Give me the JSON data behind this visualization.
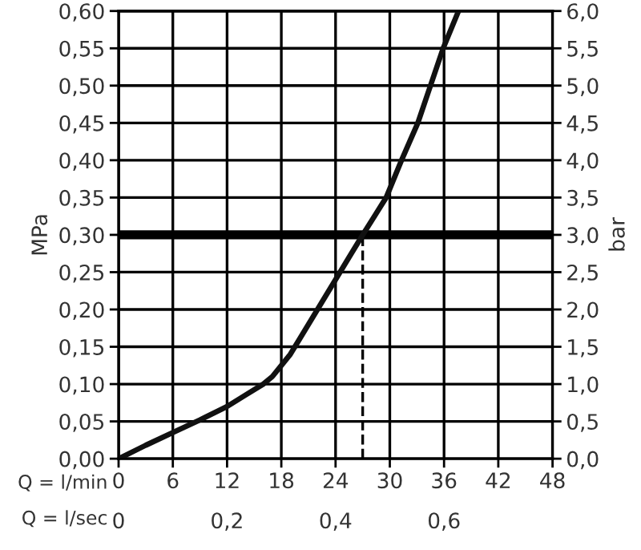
{
  "chart_data": {
    "type": "line",
    "xlabel": "Q = l/min",
    "x2label": "Q = l/sec",
    "ylabel": "MPa",
    "y2label": "bar",
    "x": [
      0,
      3,
      6,
      9,
      12,
      14,
      16,
      17,
      18,
      19,
      20,
      22,
      24,
      25.5,
      27,
      28.3,
      29.6,
      31.3,
      33.1,
      34.5,
      35.9,
      37.6
    ],
    "series": [
      {
        "color": "#111111",
        "values": [
          0,
          0.018,
          0.035,
          0.052,
          0.07,
          0.085,
          0.1,
          0.11,
          0.125,
          0.14,
          0.16,
          0.2,
          0.24,
          0.27,
          0.3,
          0.325,
          0.35,
          0.4,
          0.45,
          0.5,
          0.55,
          0.6
        ]
      }
    ],
    "xlim": [
      0,
      48
    ],
    "xticks": [
      0,
      6,
      12,
      18,
      24,
      30,
      36,
      42,
      48
    ],
    "ylim": [
      0,
      0.6
    ],
    "yticks": [
      {
        "value": 0,
        "label": "0,00"
      },
      {
        "value": 0.05,
        "label": "0,05"
      },
      {
        "value": 0.1,
        "label": "0,10"
      },
      {
        "value": 0.15,
        "label": "0,15"
      },
      {
        "value": 0.2,
        "label": "0,20"
      },
      {
        "value": 0.25,
        "label": "0,25"
      },
      {
        "value": 0.3,
        "label": "0,30"
      },
      {
        "value": 0.35,
        "label": "0,35"
      },
      {
        "value": 0.4,
        "label": "0,40"
      },
      {
        "value": 0.45,
        "label": "0,45"
      },
      {
        "value": 0.5,
        "label": "0,50"
      },
      {
        "value": 0.55,
        "label": "0,55"
      },
      {
        "value": 0.6,
        "label": "0,60"
      }
    ],
    "y2lim": [
      0,
      6
    ],
    "y2ticks": [
      {
        "value": 0,
        "label": "0,0"
      },
      {
        "value": 0.5,
        "label": "0,5"
      },
      {
        "value": 1,
        "label": "1,0"
      },
      {
        "value": 1.5,
        "label": "1,5"
      },
      {
        "value": 2,
        "label": "2,0"
      },
      {
        "value": 2.5,
        "label": "2,5"
      },
      {
        "value": 3,
        "label": "3,0"
      },
      {
        "value": 3.5,
        "label": "3,5"
      },
      {
        "value": 4,
        "label": "4,0"
      },
      {
        "value": 4.5,
        "label": "4,5"
      },
      {
        "value": 5,
        "label": "5,0"
      },
      {
        "value": 5.5,
        "label": "5,5"
      },
      {
        "value": 6,
        "label": "6,0"
      }
    ],
    "x2lim": [
      0,
      0.8
    ],
    "x2ticks": [
      0,
      {
        "value": 0.2,
        "label": "0,2"
      },
      {
        "value": 0.4,
        "label": "0,4"
      },
      {
        "value": 0.6,
        "label": "0,6"
      }
    ],
    "ref_lines": [
      {
        "axis": "y",
        "value": 0.3,
        "color": "#000000",
        "line_style": "solid"
      },
      {
        "axis": "x",
        "value": 27,
        "color": "#000000",
        "line_style": "dashed"
      }
    ],
    "grid": true,
    "marker": "none",
    "line_style": "solid"
  }
}
